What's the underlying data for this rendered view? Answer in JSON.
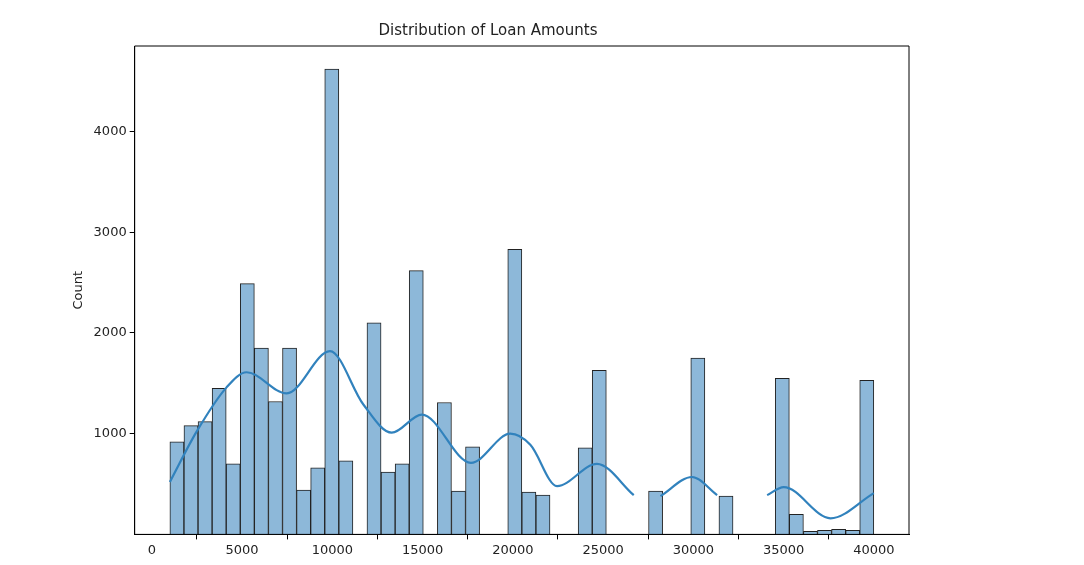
{
  "chart_data": {
    "type": "histogram",
    "title": "Distribution of Loan Amounts",
    "ylabel": "Count",
    "bins": [
      1000,
      1780,
      2560,
      3340,
      4120,
      4900,
      5680,
      6460,
      7240,
      8020,
      8800,
      9580,
      10360,
      11140,
      11920,
      12700,
      13480,
      14260,
      15040,
      15820,
      16600,
      17380,
      18160,
      18940,
      19720,
      20500,
      21280,
      22060,
      22840,
      23620,
      24400,
      25180,
      25960,
      26740,
      27520,
      28300,
      29080,
      29860,
      30640,
      31420,
      32200,
      32980,
      33760,
      34540,
      35320,
      36100,
      36880,
      37660,
      38440,
      39220,
      40000
    ],
    "series": [
      {
        "color": "#8db8d9",
        "values": [
          920,
          1080,
          1120,
          1450,
          700,
          2490,
          1850,
          1320,
          1850,
          440,
          660,
          4620,
          730,
          null,
          2100,
          620,
          700,
          2620,
          null,
          1310,
          430,
          870,
          null,
          null,
          2830,
          420,
          390,
          null,
          null,
          860,
          1630,
          null,
          null,
          null,
          430,
          null,
          null,
          1750,
          null,
          380,
          null,
          null,
          null,
          1550,
          200,
          30,
          40,
          50,
          40,
          1530
        ]
      },
      {
        "type": "line",
        "color": "#3182bd",
        "x": [
          1000,
          2480,
          4140,
          5250,
          7470,
          9870,
          11720,
          13290,
          14960,
          17680,
          19860,
          20970,
          22450,
          24660,
          26700,
          27400,
          28180,
          29930,
          31320,
          32500,
          34090,
          35010,
          37600,
          40000
        ],
        "values": [
          520,
          1020,
          1460,
          1610,
          1400,
          1820,
          1290,
          1010,
          1190,
          710,
          1000,
          890,
          480,
          700,
          390,
          null,
          380,
          570,
          390,
          null,
          390,
          470,
          160,
          410
        ]
      }
    ],
    "xlim": [
      -950,
      41950
    ],
    "ylim": [
      0,
      4850
    ],
    "xticks": [
      0,
      5000,
      10000,
      15000,
      20000,
      25000,
      30000,
      35000,
      40000
    ],
    "yticks": [
      1000,
      2000,
      3000,
      4000
    ]
  }
}
